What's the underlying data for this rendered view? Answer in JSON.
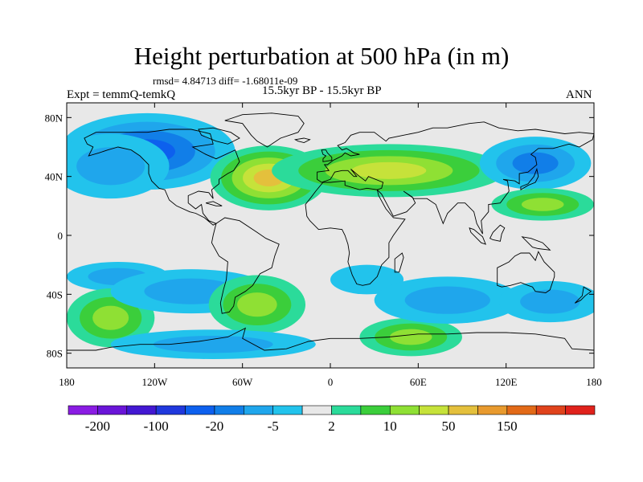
{
  "title": "Height perturbation at 500 hPa (in m)",
  "stats": "rmsd= 4.84713 diff= -1.68011e-09",
  "experiment": "Expt = temmQ-temkQ",
  "period": "15.5kyr BP - 15.5kyr BP",
  "season": "ANN",
  "axes": {
    "lon": [
      {
        "deg": -180,
        "label": "180"
      },
      {
        "deg": -120,
        "label": "120W"
      },
      {
        "deg": -60,
        "label": "60W"
      },
      {
        "deg": 0,
        "label": "0"
      },
      {
        "deg": 60,
        "label": "60E"
      },
      {
        "deg": 120,
        "label": "120E"
      },
      {
        "deg": 180,
        "label": "180"
      }
    ],
    "lat": [
      {
        "deg": 80,
        "label": "80N"
      },
      {
        "deg": 40,
        "label": "40N"
      },
      {
        "deg": 0,
        "label": "0"
      },
      {
        "deg": -40,
        "label": "40S"
      },
      {
        "deg": -80,
        "label": "80S"
      }
    ]
  },
  "colorbar": {
    "colors": [
      "#8a1ce3",
      "#6a15d8",
      "#4318d2",
      "#2038dd",
      "#0d60ee",
      "#117ee8",
      "#1fa6ec",
      "#22c3ec",
      "#e8e8e8",
      "#2bdb9a",
      "#3bce3b",
      "#8fe034",
      "#c6e23a",
      "#e4c03c",
      "#e89a2e",
      "#e26a18",
      "#e0431c",
      "#e0221c"
    ],
    "tick_labels": [
      {
        "after_bin": 1,
        "label": "-200"
      },
      {
        "after_bin": 3,
        "label": "-100"
      },
      {
        "after_bin": 5,
        "label": "-20"
      },
      {
        "after_bin": 7,
        "label": "-5"
      },
      {
        "after_bin": 9,
        "label": "2"
      },
      {
        "after_bin": 11,
        "label": "10"
      },
      {
        "after_bin": 13,
        "label": "50"
      },
      {
        "after_bin": 15,
        "label": "150"
      }
    ]
  },
  "map_colors": {
    "background": "#e8e8e8",
    "weak_neg": "#22c3ec",
    "mid_neg": "#1fa6ec",
    "strong_neg": "#117ee8",
    "very_strong_neg": "#0d60ee",
    "weak_pos": "#2bdb9a",
    "mid_pos": "#3bce3b",
    "strong_pos": "#8fe034",
    "very_strong_pos": "#c6e23a",
    "peak_pos": "#e4c03c",
    "coast": "#000000"
  },
  "anomalies": [
    {
      "lon": -125,
      "lat": 57,
      "rlon": 60,
      "rlat": 26,
      "levels": [
        "weak_neg",
        "mid_neg",
        "strong_neg",
        "very_strong_neg"
      ]
    },
    {
      "lon": -150,
      "lat": 47,
      "rlon": 40,
      "rlat": 22,
      "levels": [
        "weak_neg",
        "mid_neg"
      ]
    },
    {
      "lon": -42,
      "lat": 39,
      "rlon": 40,
      "rlat": 22,
      "levels": [
        "weak_pos",
        "mid_pos",
        "strong_pos",
        "very_strong_pos",
        "peak_pos"
      ]
    },
    {
      "lon": 40,
      "lat": 44,
      "rlon": 80,
      "rlat": 18,
      "levels": [
        "weak_pos",
        "mid_pos",
        "strong_pos",
        "very_strong_pos"
      ]
    },
    {
      "lon": 140,
      "lat": 49,
      "rlon": 38,
      "rlat": 18,
      "levels": [
        "weak_neg",
        "mid_neg",
        "strong_neg"
      ]
    },
    {
      "lon": 145,
      "lat": 21,
      "rlon": 35,
      "rlat": 11,
      "levels": [
        "weak_pos",
        "mid_pos",
        "strong_pos"
      ]
    },
    {
      "lon": -145,
      "lat": -28,
      "rlon": 35,
      "rlat": 10,
      "levels": [
        "weak_neg",
        "mid_neg"
      ]
    },
    {
      "lon": -150,
      "lat": -56,
      "rlon": 30,
      "rlat": 20,
      "levels": [
        "weak_pos",
        "mid_pos",
        "strong_pos"
      ]
    },
    {
      "lon": -95,
      "lat": -38,
      "rlon": 55,
      "rlat": 15,
      "levels": [
        "weak_neg",
        "mid_neg"
      ]
    },
    {
      "lon": -50,
      "lat": -47,
      "rlon": 33,
      "rlat": 20,
      "levels": [
        "weak_pos",
        "mid_pos",
        "strong_pos"
      ]
    },
    {
      "lon": -80,
      "lat": -74,
      "rlon": 70,
      "rlat": 10,
      "levels": [
        "weak_neg",
        "mid_neg"
      ]
    },
    {
      "lon": 25,
      "lat": -30,
      "rlon": 25,
      "rlat": 10,
      "levels": [
        "weak_neg"
      ]
    },
    {
      "lon": 55,
      "lat": -69,
      "rlon": 35,
      "rlat": 13,
      "levels": [
        "weak_pos",
        "mid_pos",
        "strong_pos"
      ]
    },
    {
      "lon": 80,
      "lat": -44,
      "rlon": 50,
      "rlat": 16,
      "levels": [
        "weak_neg",
        "mid_neg"
      ]
    },
    {
      "lon": 150,
      "lat": -45,
      "rlon": 35,
      "rlat": 14,
      "levels": [
        "weak_neg",
        "mid_neg"
      ]
    }
  ]
}
